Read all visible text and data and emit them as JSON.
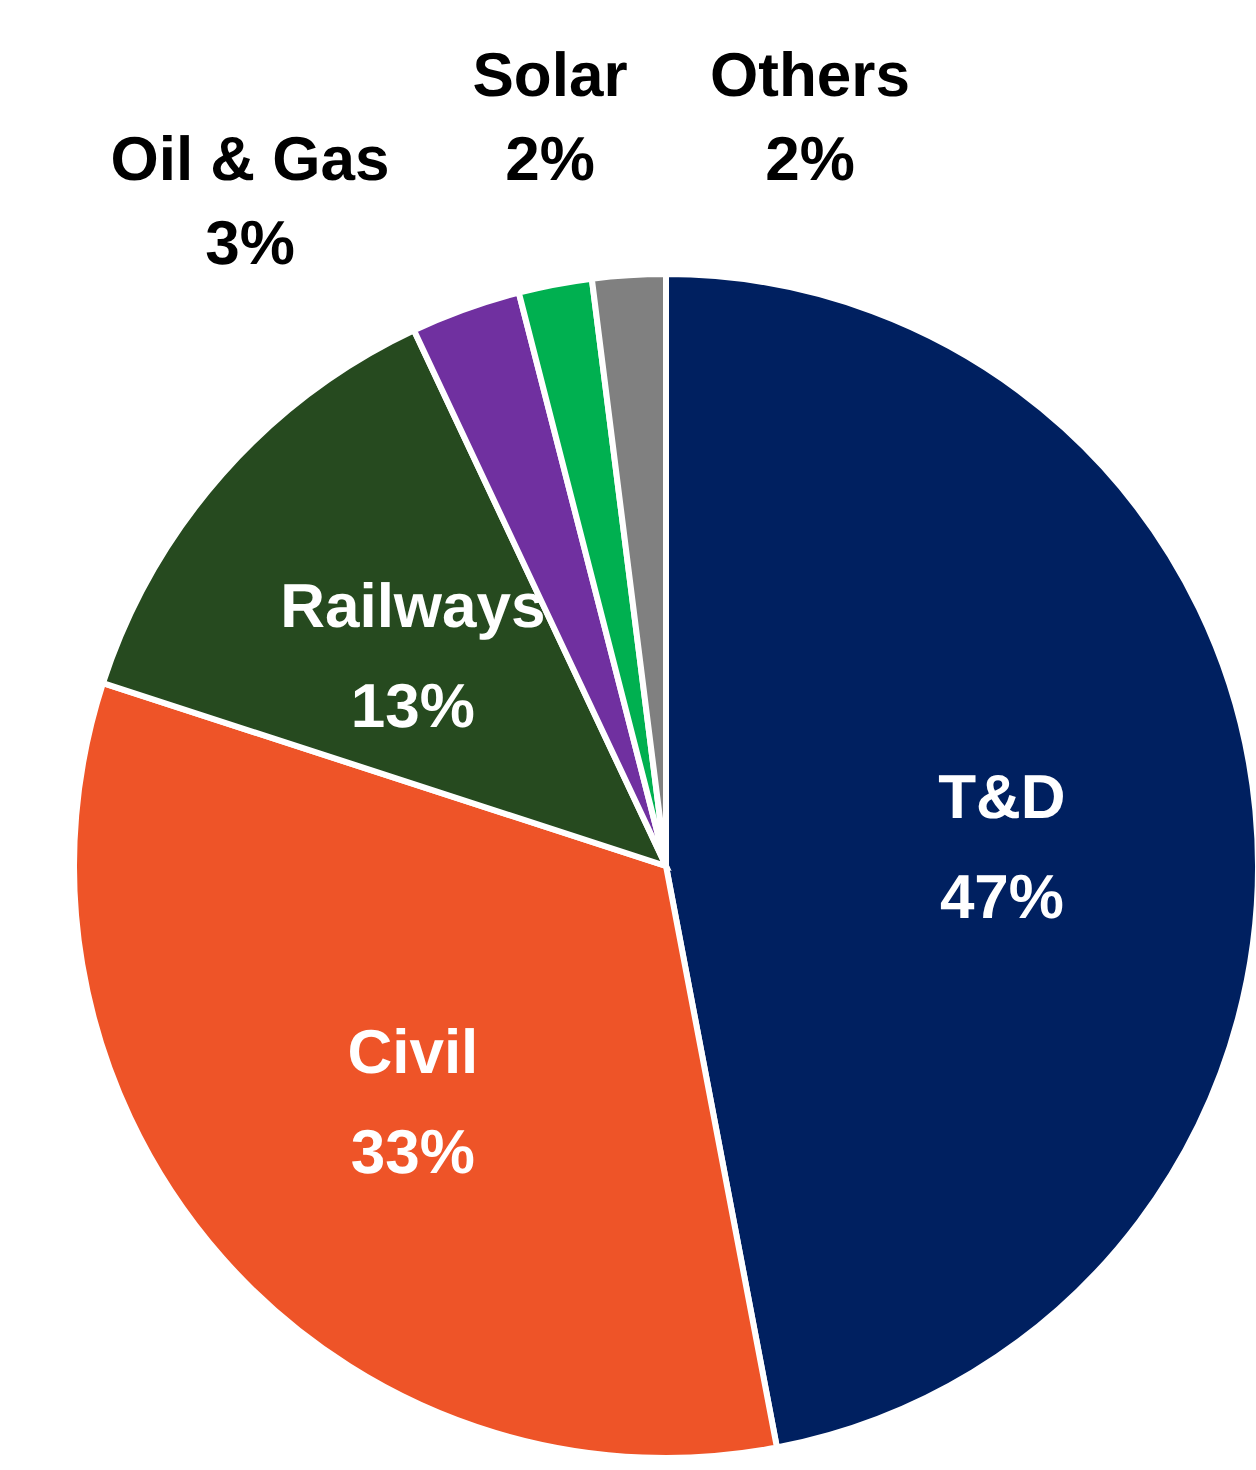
{
  "chart_data": {
    "type": "pie",
    "categories": [
      "T&D",
      "Civil",
      "Railways",
      "Oil & Gas",
      "Solar",
      "Others"
    ],
    "values": [
      47,
      33,
      13,
      3,
      2,
      2
    ],
    "value_labels": [
      "47%",
      "33%",
      "13%",
      "3%",
      "2%",
      "2%"
    ],
    "colors": [
      "#002060",
      "#ee5428",
      "#264a1f",
      "#7030a0",
      "#00b050",
      "#808080"
    ]
  }
}
